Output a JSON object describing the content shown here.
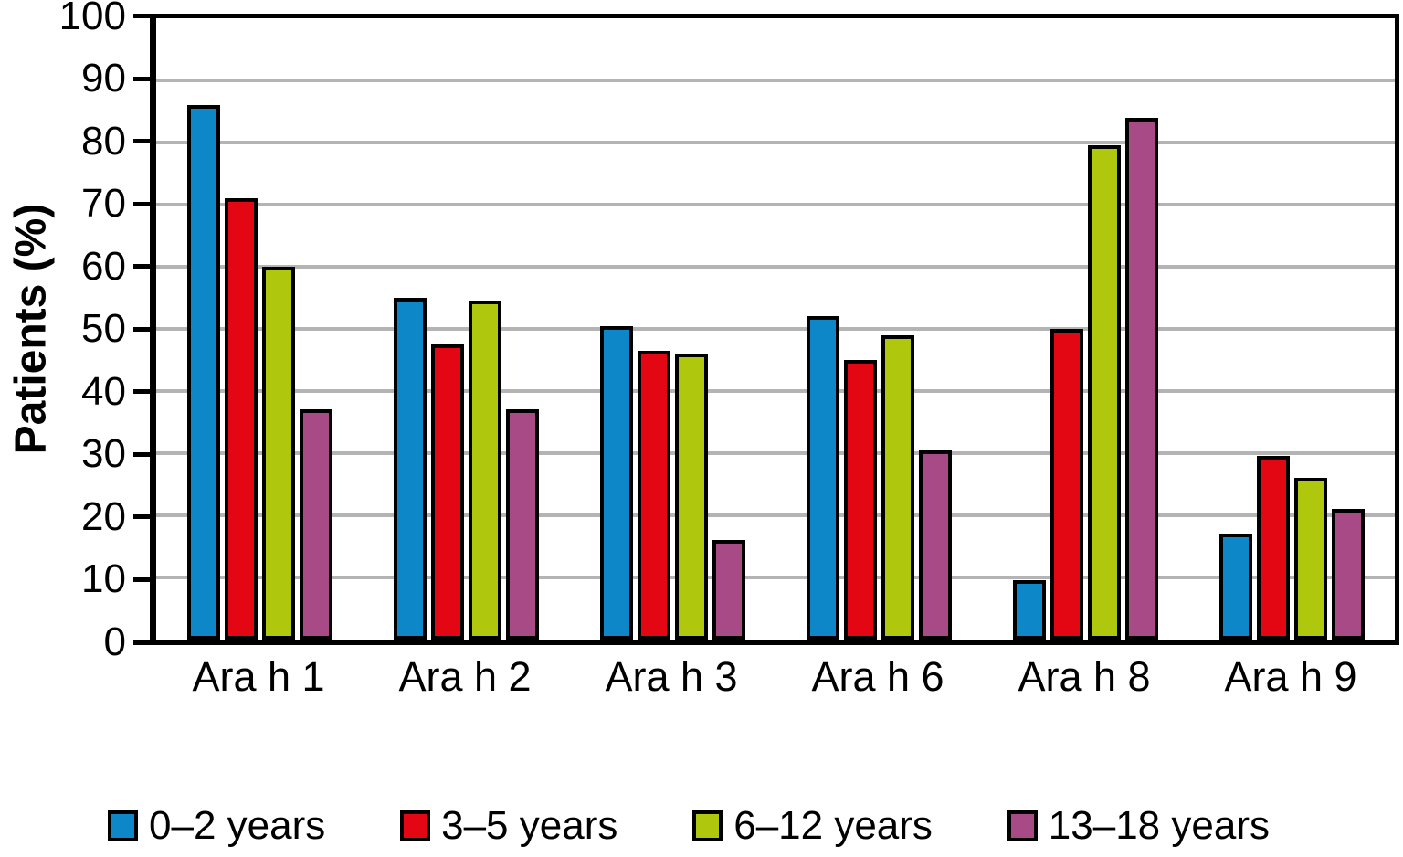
{
  "figure": {
    "background": "#ffffff",
    "axis_color": "#000000",
    "gridline_color": "#b4b4b4",
    "text_color": "#000000"
  },
  "chart_data": {
    "type": "bar",
    "title": "",
    "xlabel": "",
    "ylabel": "Patients (%)",
    "ylim": [
      0,
      100
    ],
    "ytick_interval": 10,
    "yticks": [
      100,
      90,
      80,
      70,
      60,
      50,
      40,
      30,
      20,
      10,
      0
    ],
    "grid": "horizontal gridlines every 10, light gray, behind bars",
    "legend_position": "bottom",
    "bar_outline": "#000000",
    "categories": [
      "Ara h 1",
      "Ara h 2",
      "Ara h 3",
      "Ara h 6",
      "Ara h 8",
      "Ara h 9"
    ],
    "series": [
      {
        "name": "0–2 years",
        "color": "#0d87c8",
        "values": [
          86,
          55,
          50.5,
          52,
          9.5,
          17
        ]
      },
      {
        "name": "3–5 years",
        "color": "#e30613",
        "values": [
          71,
          47.5,
          46.5,
          45,
          50,
          29.5
        ]
      },
      {
        "name": "6–12 years",
        "color": "#afc70d",
        "values": [
          60,
          54.5,
          46,
          49,
          79.5,
          26
        ]
      },
      {
        "name": "13–18 years",
        "color": "#a84a85",
        "values": [
          37,
          37,
          16,
          30.5,
          84,
          21
        ]
      }
    ]
  }
}
